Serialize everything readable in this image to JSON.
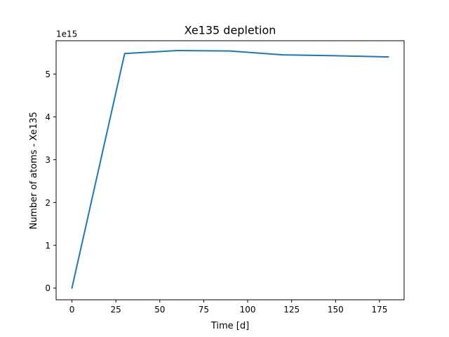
{
  "chart_data": {
    "type": "line",
    "title": "Xe135 depletion",
    "xlabel": "Time [d]",
    "ylabel": "Number of atoms - Xe135",
    "y_offset_label": "1e15",
    "xlim": [
      -9,
      189
    ],
    "ylim": [
      -0.275,
      5.78
    ],
    "x_ticks": [
      0,
      25,
      50,
      75,
      100,
      125,
      150,
      175
    ],
    "y_ticks": [
      0,
      1,
      2,
      3,
      4,
      5
    ],
    "line_color": "#1f77b4",
    "grid": false,
    "series": [
      {
        "x": [
          0,
          30,
          60,
          90,
          120,
          150,
          180
        ],
        "y": [
          0,
          5.48,
          5.55,
          5.54,
          5.45,
          5.43,
          5.4
        ]
      }
    ]
  }
}
